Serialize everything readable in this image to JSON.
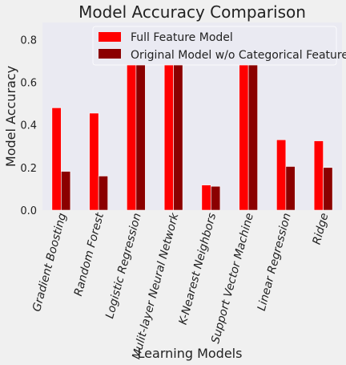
{
  "chart_data": {
    "type": "bar",
    "title": "Model Accuracy Comparison",
    "xlabel": "Learning Models",
    "ylabel": "Model Accuracy",
    "ylim": [
      0,
      0.88
    ],
    "yticks": [
      0.0,
      0.2,
      0.4,
      0.6,
      0.8
    ],
    "ytick_labels": [
      "0.0",
      "0.2",
      "0.4",
      "0.6",
      "0.8"
    ],
    "grid": false,
    "legend_position": "top-center",
    "categories": [
      "Gradient Boosting",
      "Random Forest",
      "Logistic Regression",
      "Mulit-layer Neural Network",
      "K-Nearest Neighbors",
      "Support Vector Machine",
      "Linear Regression",
      "Ridge"
    ],
    "series": [
      {
        "name": "Full Feature Model",
        "color": "#ff0000",
        "values": [
          0.48,
          0.455,
          0.81,
          0.825,
          0.118,
          0.77,
          0.33,
          0.325
        ]
      },
      {
        "name": "Original Model w/o Categorical Features",
        "color": "#8b0000",
        "values": [
          0.182,
          0.16,
          0.765,
          0.765,
          0.112,
          0.755,
          0.205,
          0.2
        ]
      }
    ]
  }
}
